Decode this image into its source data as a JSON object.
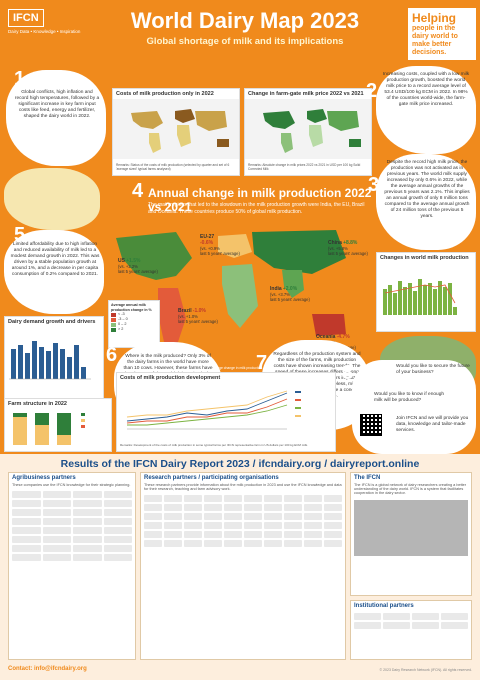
{
  "header": {
    "logo": "IFCN",
    "logo_sub": "Dairy Data • Knowledge • Inspiration",
    "title": "World Dairy Map 2023",
    "subtitle": "Global shortage of milk and its implications",
    "helping_title": "Helping",
    "helping_text": "people in the dairy world to make better decisions."
  },
  "sections": {
    "s1_num": "1",
    "s1_text": "Global conflicts, high inflation and record high temperatures, followed by a significant increase in key farm input costs like feed, energy and fertilizer, shaped the dairy world in 2022.",
    "s2_num": "2",
    "s2_text": "Increasing costs, coupled with a low milk production growth, boosted the world milk price to a record average level of 53.4 USD/100 kg ECM in 2022. In 98% of the countries world-wide, the farm-gate milk price increased.",
    "s3_num": "3",
    "s3_text": "Despite the record high milk price, the production was not activated as in previous years. The world milk supply increased by only 0.6% in 2022, while the average annual growths of the previous 5 years was 2.1%. This implies an annual growth of only 8 million tons compared to the average annual growth of 24 million tons of the previous 5 years.",
    "s4_num": "4",
    "s4_title": "Annual change in milk production 2022 vs 2021",
    "s4_text": "The main regions that led to the slowdown in the milk production growth were India, the EU, Brazil and Oceania. These countries produce 50% of global milk production.",
    "s5_num": "5",
    "s5_text": "Limited affordability due to high inflation and reduced availability of milk led to a modest demand growth in 2022. This was driven by a stable population growth at around 1%, and a decrease in per capita consumption of 0.2% compared to 2021.",
    "s6_num": "6",
    "s6_text": "Where is the milk produced? Only 3% of the dairy farms in the world have more than 10 cows. However, these farms have already 30% of the world dairy animals that produce more than 63% of the global milk. These farms are mostly located in the main exporter regions.",
    "s7_num": "7",
    "s7_text": "Regardless of the production system and the size of the farms, milk production costs have shown increasing trends. The speed of these increases differs among countries, as different factors impact regions differently. Nevertheless, milk production costs have become a concern almost everywhere.",
    "s8_num": "8",
    "s8_q1": "Would you like to secure the future of your business?",
    "s8_q2": "Would you like to know if enough milk will be produced?",
    "s8_text": "Join IFCN and we will provide you data, knowledge and tailor-made services."
  },
  "panels": {
    "costs_title": "Costs of milk production only in 2022",
    "costs_remark": "Remarks: Status of the costs of milk production (selected by quarter and set of 6 'average sized' typical farms analysed)",
    "price_title": "Change in farm-gate milk price 2022 vs 2021",
    "price_remark": "Remarks: Absolute change in milk prices 2022 vs 2021 in USD per 100 kg Solid Corrected Milk",
    "changes_title": "Changes in world milk production",
    "demand_title": "Dairy demand growth and drivers",
    "farm_title": "Farm structure in 2022",
    "costdev_title": "Costs of milk production development",
    "costdev_remark": "Remarks: Development of the costs of milk production in some typical farms per IFCN representative farm in US dollars per 100 kg ECM milk."
  },
  "map": {
    "legend_title": "Average annual milk production change in %",
    "us": {
      "name": "US",
      "v1": "+1.5%",
      "v2": "(vs. +2.2%",
      "v3": "last 5 years' average)"
    },
    "eu": {
      "name": "EU-27",
      "v1": "-0.6%",
      "v2": "(vs. +0.9%",
      "v3": "last 5 years' average)"
    },
    "china": {
      "name": "China",
      "v1": "+8.8%",
      "v2": "(vs. +5.8%",
      "v3": "last 5 years' average)"
    },
    "india": {
      "name": "India",
      "v1": "+2.0%",
      "v2": "(vs. +3.7%",
      "v3": "last 5 years' average)"
    },
    "brazil": {
      "name": "Brazil",
      "v1": "-1.0%",
      "v2": "(vs. +1.0%",
      "v3": "last 5 years' average)"
    },
    "oceania": {
      "name": "Oceania",
      "v1": "-4.7%",
      "v2": "(vs. +0.1%",
      "v3": "last 5 years' average)"
    },
    "remark": "Remarks: Average annual percentage change in milk production in 2022 vs. 2021. The Independent Dairy Conference (RIDC) 2022 and IFCN Dairy Report 2023."
  },
  "results": {
    "title": "Results of the IFCN Dairy Report 2023 / ifcndairy.org / dairyreport.online",
    "agri_title": "Agribusiness partners",
    "agri_sub": "These companies use the IFCN knowledge for their strategic planning.",
    "research_title": "Research partners / participating organisations",
    "research_sub": "These research partners provide information about the milk production in 2023 and use the IFCN knowledge and data for their research, teaching and farm advisory work.",
    "ifcn_title": "The IFCN",
    "ifcn_text": "The IFCN is a global network of dairy researchers creating a better understanding of the dairy world. IFCN is a system that facilitates cooperation in the dairy sector.",
    "inst_title": "Institutional partners",
    "contact": "Contact: info@ifcndairy.org",
    "copyright": "© 2023 Dairy Research Network (IFCN). All rights reserved."
  },
  "colors": {
    "orange": "#f08a1c",
    "blue": "#1b4f8a",
    "green": "#3a9a3a"
  }
}
